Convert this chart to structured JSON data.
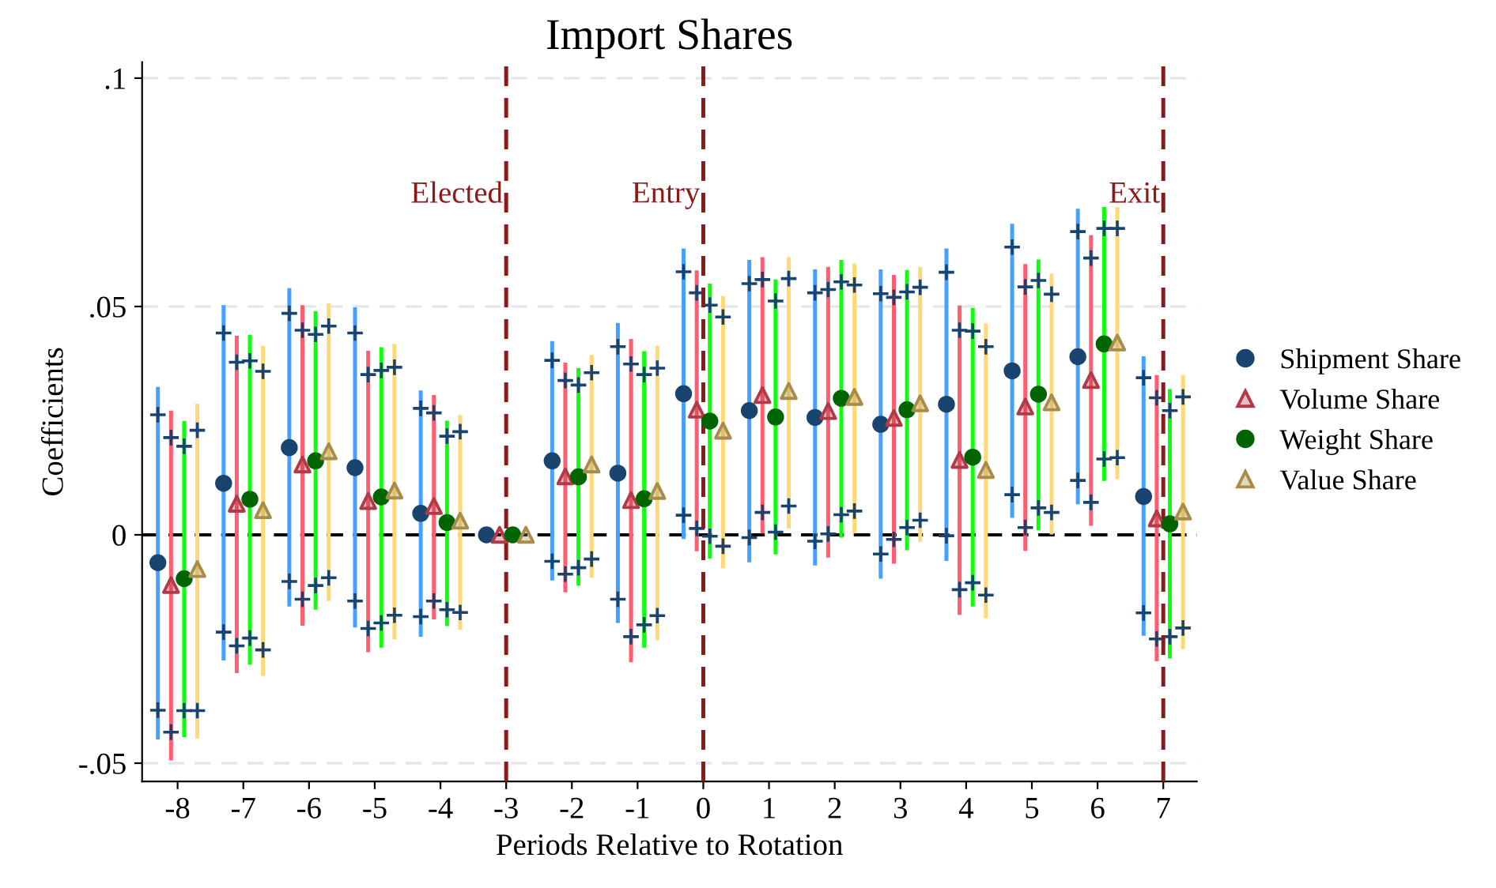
{
  "chart_data": {
    "type": "scatter",
    "title": "Import Shares",
    "xlabel": "Periods Relative to Rotation",
    "ylabel": "Coefficients",
    "xlim": [
      -8.54,
      7.51
    ],
    "xticks": [
      -8,
      -7,
      -6,
      -5,
      -4,
      -3,
      -2,
      -1,
      0,
      1,
      2,
      3,
      4,
      5,
      6,
      7
    ],
    "ylim": [
      -0.054,
      0.1035
    ],
    "yticks": [
      {
        "value": 0.1,
        "label": ".1"
      },
      {
        "value": 0.05,
        "label": ".05"
      },
      {
        "value": 0,
        "label": "0"
      },
      {
        "value": -0.05,
        "label": "-.05"
      }
    ],
    "grid": "y",
    "legend": "right",
    "ref_lines": [
      {
        "axis": "x",
        "value": -3,
        "label": "Elected",
        "color": "#8b1a1a",
        "line_style": "dashed"
      },
      {
        "axis": "x",
        "value": 0,
        "label": "Entry",
        "color": "#8b1a1a",
        "line_style": "dashed"
      },
      {
        "axis": "x",
        "value": 7,
        "label": "Exit",
        "color": "#8b1a1a",
        "line_style": "dashed"
      },
      {
        "axis": "y",
        "value": 0,
        "color": "#000000",
        "line_style": "dashed"
      }
    ],
    "series": [
      {
        "name": "Shipment Share",
        "color": "#1a4470",
        "marker": "circle",
        "x": [
          -8.3,
          -7.3,
          -6.3,
          -5.3,
          -4.3,
          -3.3,
          -2.3,
          -1.3,
          -0.3,
          0.7,
          1.7,
          2.7,
          3.7,
          4.7,
          5.7,
          6.7
        ],
        "values": [
          -0.0061,
          0.0113,
          0.0191,
          0.0147,
          0.0047,
          0,
          0.0162,
          0.0135,
          0.0309,
          0.0272,
          0.0257,
          0.0242,
          0.0286,
          0.0359,
          0.039,
          0.0084
        ],
        "errors": [
          [
            -0.0448,
            0.0324
          ],
          [
            -0.0275,
            0.0503
          ],
          [
            -0.0157,
            0.054
          ],
          [
            -0.0203,
            0.0498
          ],
          [
            -0.0223,
            0.0316
          ],
          null,
          [
            -0.01,
            0.0424
          ],
          [
            -0.0193,
            0.0464
          ],
          [
            -0.0009,
            0.0627
          ],
          [
            -0.006,
            0.0602
          ],
          [
            -0.0067,
            0.0581
          ],
          [
            -0.0096,
            0.0581
          ],
          [
            -0.0057,
            0.0627
          ],
          [
            0.0037,
            0.0681
          ],
          [
            0.0067,
            0.0714
          ],
          [
            -0.0221,
            0.0391
          ]
        ]
      },
      {
        "name": "Volume Share",
        "color": "#b03a48",
        "marker": "triangle",
        "x": [
          -8.1,
          -7.1,
          -6.1,
          -5.1,
          -4.1,
          -3.1,
          -2.1,
          -1.1,
          -0.1,
          0.9,
          1.9,
          2.9,
          3.9,
          4.9,
          5.9,
          6.9
        ],
        "values": [
          -0.011,
          0.0068,
          0.0154,
          0.0074,
          0.0063,
          0,
          0.0128,
          0.0076,
          0.0274,
          0.0306,
          0.0271,
          0.0256,
          0.0164,
          0.0281,
          0.0339,
          0.0036
        ],
        "errors": [
          [
            -0.0494,
            0.0272
          ],
          [
            -0.0303,
            0.0436
          ],
          [
            -0.0199,
            0.0503
          ],
          [
            -0.0257,
            0.0403
          ],
          [
            -0.0185,
            0.0306
          ],
          null,
          [
            -0.0126,
            0.0377
          ],
          [
            -0.0279,
            0.0429
          ],
          [
            -0.0036,
            0.0579
          ],
          [
            0.0003,
            0.0608
          ],
          [
            -0.005,
            0.0587
          ],
          [
            -0.0063,
            0.0569
          ],
          [
            -0.0175,
            0.0502
          ],
          [
            -0.0035,
            0.0593
          ],
          [
            0.002,
            0.0656
          ],
          [
            -0.0277,
            0.035
          ]
        ]
      },
      {
        "name": "Weight Share",
        "color": "#006400",
        "marker": "circle",
        "x": [
          -7.9,
          -6.9,
          -5.9,
          -4.9,
          -3.9,
          -2.9,
          -1.9,
          -0.9,
          0.1,
          1.1,
          2.1,
          3.1,
          4.1,
          5.1,
          6.1,
          7.1
        ],
        "values": [
          -0.0096,
          0.0078,
          0.0162,
          0.0083,
          0.0027,
          0,
          0.0127,
          0.0079,
          0.0249,
          0.0258,
          0.0299,
          0.0274,
          0.017,
          0.0308,
          0.0418,
          0.0024
        ],
        "errors": [
          [
            -0.0443,
            0.0249
          ],
          [
            -0.0284,
            0.0438
          ],
          [
            -0.0164,
            0.049
          ],
          [
            -0.0247,
            0.0411
          ],
          [
            -0.02,
            0.025
          ],
          null,
          [
            -0.0111,
            0.0365
          ],
          [
            -0.0247,
            0.0402
          ],
          [
            -0.0052,
            0.055
          ],
          [
            -0.0043,
            0.0559
          ],
          [
            -0.0006,
            0.0602
          ],
          [
            -0.0034,
            0.058
          ],
          [
            -0.0157,
            0.0497
          ],
          [
            0.001,
            0.0603
          ],
          [
            0.0118,
            0.0718
          ],
          [
            -0.0271,
            0.0319
          ]
        ]
      },
      {
        "name": "Value Share",
        "color": "#a88d4a",
        "marker": "triangle",
        "x": [
          -7.7,
          -6.7,
          -5.7,
          -4.7,
          -3.7,
          -2.7,
          -1.7,
          -0.7,
          0.3,
          1.3,
          2.3,
          3.3,
          4.3,
          5.3,
          6.3,
          7.3
        ],
        "values": [
          -0.0075,
          0.0054,
          0.0183,
          0.0097,
          0.0031,
          0,
          0.0154,
          0.0096,
          0.0228,
          0.0315,
          0.0302,
          0.0288,
          0.0142,
          0.029,
          0.0421,
          0.0051
        ],
        "errors": [
          [
            -0.0446,
            0.0287
          ],
          [
            -0.0309,
            0.0414
          ],
          [
            -0.0145,
            0.0507
          ],
          [
            -0.0229,
            0.0418
          ],
          [
            -0.0208,
            0.0262
          ],
          null,
          [
            -0.0094,
            0.0394
          ],
          [
            -0.0231,
            0.0414
          ],
          [
            -0.0073,
            0.0523
          ],
          [
            0.0014,
            0.0608
          ],
          [
            0.0003,
            0.0594
          ],
          [
            -0.0015,
            0.0587
          ],
          [
            -0.0183,
            0.0463
          ],
          [
            0.0001,
            0.0572
          ],
          [
            0.0122,
            0.0718
          ],
          [
            -0.025,
            0.035
          ]
        ]
      },
      {
        "color": "#1a4470",
        "marker": "cross",
        "x": [
          -8.3,
          -7.3,
          -6.3,
          -5.3,
          -4.3,
          -2.3,
          -1.3,
          -0.3,
          0.7,
          1.7,
          2.7,
          3.7,
          4.7,
          5.7,
          6.7,
          -8.3,
          -7.3,
          -6.3,
          -5.3,
          -4.3,
          -2.3,
          -1.3,
          -0.3,
          0.7,
          1.7,
          2.7,
          3.7,
          4.7,
          5.7,
          6.7
        ],
        "values": [
          -0.0384,
          -0.0213,
          -0.0102,
          -0.0145,
          -0.0179,
          -0.0058,
          -0.0141,
          0.0043,
          -0.0006,
          -0.0014,
          -0.0042,
          -0.0002,
          0.0088,
          0.0119,
          -0.0171,
          0.0263,
          0.0442,
          0.0485,
          0.0442,
          0.0277,
          0.0382,
          0.0412,
          0.0576,
          0.055,
          0.053,
          0.0528,
          0.0575,
          0.063,
          0.0664,
          0.0344
        ]
      },
      {
        "color": "#1a4470",
        "marker": "cross",
        "x": [
          -8.1,
          -7.1,
          -6.1,
          -5.1,
          -4.1,
          -2.1,
          -1.1,
          -0.1,
          0.9,
          1.9,
          2.9,
          3.9,
          4.9,
          5.9,
          6.9,
          -8.1,
          -7.1,
          -6.1,
          -5.1,
          -4.1,
          -2.1,
          -1.1,
          -0.1,
          0.9,
          1.9,
          2.9,
          3.9,
          4.9,
          5.9,
          6.9
        ],
        "values": [
          -0.0432,
          -0.0243,
          -0.0141,
          -0.0205,
          -0.0145,
          -0.0086,
          -0.0223,
          0.0014,
          0.0049,
          0.0002,
          -0.001,
          -0.012,
          0.0016,
          0.0071,
          -0.0228,
          0.0213,
          0.0378,
          0.0448,
          0.0351,
          0.0267,
          0.0338,
          0.0374,
          0.053,
          0.0559,
          0.0537,
          0.052,
          0.0448,
          0.0543,
          0.0606,
          0.03
        ]
      },
      {
        "color": "#1a4470",
        "marker": "cross",
        "x": [
          -7.9,
          -6.9,
          -5.9,
          -4.9,
          -3.9,
          -1.9,
          -0.9,
          0.1,
          1.1,
          2.1,
          3.1,
          4.1,
          5.1,
          6.1,
          7.1,
          -7.9,
          -6.9,
          -5.9,
          -4.9,
          -3.9,
          -1.9,
          -0.9,
          0.1,
          1.1,
          2.1,
          3.1,
          4.1,
          5.1,
          6.1,
          7.1
        ],
        "values": [
          -0.0385,
          -0.0226,
          -0.0111,
          -0.0193,
          -0.0164,
          -0.0072,
          -0.0197,
          -0.0003,
          0.0006,
          0.0044,
          0.0016,
          -0.0105,
          0.0059,
          0.0166,
          -0.0223,
          0.0194,
          0.0381,
          0.0439,
          0.036,
          0.0216,
          0.0328,
          0.0351,
          0.0503,
          0.0512,
          0.0554,
          0.0532,
          0.0446,
          0.0557,
          0.0671,
          0.0272
        ]
      },
      {
        "color": "#1a4470",
        "marker": "cross",
        "x": [
          -7.7,
          -6.7,
          -5.7,
          -4.7,
          -3.7,
          -1.7,
          -0.7,
          0.3,
          1.3,
          2.3,
          3.3,
          4.3,
          5.3,
          6.3,
          7.3,
          -7.7,
          -6.7,
          -5.7,
          -4.7,
          -3.7,
          -1.7,
          -0.7,
          0.3,
          1.3,
          2.3,
          3.3,
          4.3,
          5.3,
          6.3,
          7.3
        ],
        "values": [
          -0.0385,
          -0.0252,
          -0.0094,
          -0.0176,
          -0.017,
          -0.0053,
          -0.0177,
          -0.0025,
          0.0063,
          0.0052,
          0.0032,
          -0.0132,
          0.0049,
          0.0169,
          -0.0204,
          0.0229,
          0.0358,
          0.0457,
          0.0367,
          0.0226,
          0.0355,
          0.0365,
          0.0477,
          0.0561,
          0.0547,
          0.0542,
          0.0412,
          0.0527,
          0.0671,
          0.0302
        ]
      }
    ]
  }
}
